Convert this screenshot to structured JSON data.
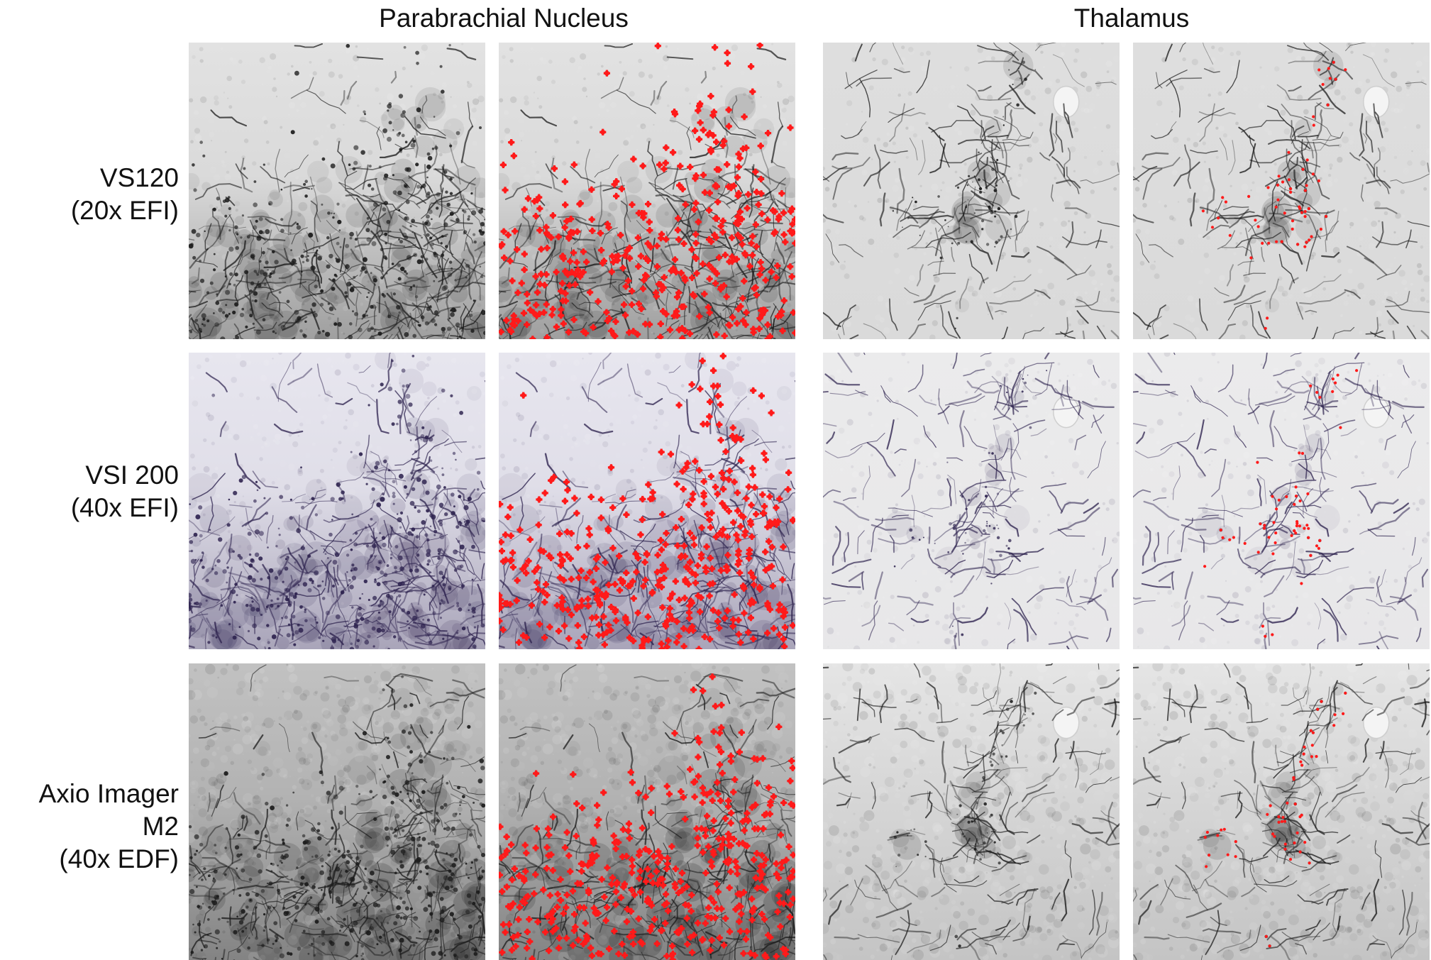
{
  "column_headers": {
    "parabrachial": "Parabrachial Nucleus",
    "thalamus": "Thalamus"
  },
  "row_labels": {
    "vs120": [
      "VS120",
      "(20x EFI)"
    ],
    "vsi200": [
      "VSI 200",
      "(40x EFI)"
    ],
    "axio": [
      "Axio Imager",
      "M2",
      "(40x EDF)"
    ]
  },
  "colors": {
    "marker": "#ff1a1a",
    "stain_grey": "#1c1c1c",
    "stain_purple": "#2f2450",
    "tissue_light": "#e6e6e6",
    "tissue_purple_bg": "#ebeaf2"
  },
  "panels": [
    {
      "id": "vs120-pbn-raw",
      "row": "vs120",
      "region": "parabrachial",
      "overlay": false
    },
    {
      "id": "vs120-pbn-detected",
      "row": "vs120",
      "region": "parabrachial",
      "overlay": true
    },
    {
      "id": "vs120-thal-raw",
      "row": "vs120",
      "region": "thalamus",
      "overlay": false
    },
    {
      "id": "vs120-thal-detected",
      "row": "vs120",
      "region": "thalamus",
      "overlay": true
    },
    {
      "id": "vsi200-pbn-raw",
      "row": "vsi200",
      "region": "parabrachial",
      "overlay": false
    },
    {
      "id": "vsi200-pbn-detected",
      "row": "vsi200",
      "region": "parabrachial",
      "overlay": true
    },
    {
      "id": "vsi200-thal-raw",
      "row": "vsi200",
      "region": "thalamus",
      "overlay": false
    },
    {
      "id": "vsi200-thal-detected",
      "row": "vsi200",
      "region": "thalamus",
      "overlay": true
    },
    {
      "id": "axio-pbn-raw",
      "row": "axio",
      "region": "parabrachial",
      "overlay": false
    },
    {
      "id": "axio-pbn-detected",
      "row": "axio",
      "region": "parabrachial",
      "overlay": true
    },
    {
      "id": "axio-thal-raw",
      "row": "axio",
      "region": "thalamus",
      "overlay": false
    },
    {
      "id": "axio-thal-detected",
      "row": "axio",
      "region": "thalamus",
      "overlay": true
    }
  ]
}
